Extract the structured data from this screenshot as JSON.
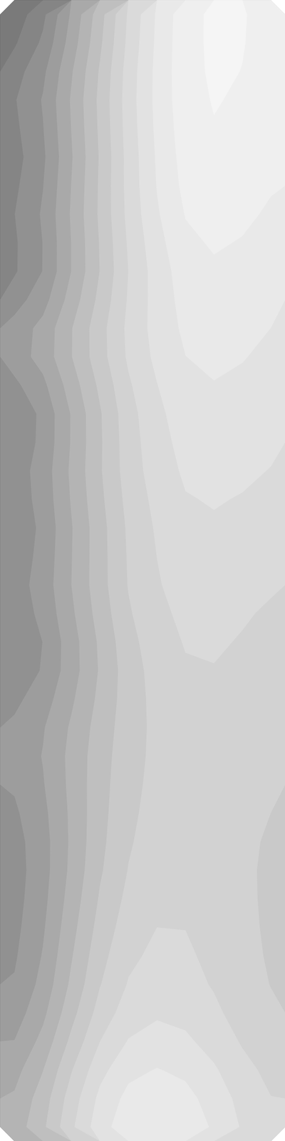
{
  "chart_data": {
    "type": "contour",
    "tick_labels": false,
    "xlim": [
      0,
      1
    ],
    "ylim": [
      0,
      4
    ],
    "zlim": [
      0,
      1
    ],
    "values": [
      [
        0.35,
        0.6,
        0.48,
        0.78,
        0.72,
        0.9,
        0.95,
        0.97,
        0.96,
        0.85
      ],
      [
        0.05,
        0.55,
        0.35,
        0.75,
        0.65,
        0.9,
        0.95,
        0.97,
        0.96,
        0.85
      ],
      [
        0.35,
        0.6,
        0.48,
        0.78,
        0.72,
        0.9,
        0.95,
        0.97,
        0.96,
        0.85
      ],
      [
        0.62,
        0.68,
        0.65,
        0.82,
        0.8,
        0.9,
        0.95,
        0.97,
        0.96,
        0.85
      ],
      [
        0.35,
        0.6,
        0.48,
        0.78,
        0.72,
        0.9,
        0.93,
        0.95,
        0.94,
        0.83
      ],
      [
        0.07,
        0.55,
        0.35,
        0.75,
        0.65,
        0.9,
        0.93,
        0.95,
        0.94,
        0.83
      ],
      [
        0.35,
        0.6,
        0.48,
        0.78,
        0.72,
        0.9,
        0.93,
        0.95,
        0.94,
        0.83
      ],
      [
        0.62,
        0.68,
        0.65,
        0.82,
        0.8,
        0.9,
        0.93,
        0.95,
        0.94,
        0.83
      ],
      [
        0.35,
        0.6,
        0.48,
        0.78,
        0.72,
        0.85,
        0.88,
        0.9,
        0.9,
        0.8
      ],
      [
        0.1,
        0.55,
        0.35,
        0.75,
        0.65,
        0.85,
        0.88,
        0.9,
        0.9,
        0.8
      ],
      [
        0.35,
        0.6,
        0.48,
        0.78,
        0.72,
        0.85,
        0.88,
        0.9,
        0.9,
        0.8
      ],
      [
        0.62,
        0.68,
        0.65,
        0.82,
        0.8,
        0.85,
        0.88,
        0.9,
        0.9,
        0.8
      ],
      [
        0.62,
        0.68,
        0.65,
        0.82,
        0.8,
        0.82,
        0.84,
        0.86,
        0.86,
        0.78
      ],
      [
        0.38,
        0.6,
        0.48,
        0.78,
        0.72,
        0.82,
        0.84,
        0.86,
        0.86,
        0.78
      ],
      [
        0.14,
        0.55,
        0.35,
        0.75,
        0.65,
        0.82,
        0.84,
        0.86,
        0.86,
        0.78
      ],
      [
        0.38,
        0.6,
        0.48,
        0.78,
        0.72,
        0.82,
        0.84,
        0.86,
        0.86,
        0.78
      ],
      [
        0.62,
        0.68,
        0.65,
        0.82,
        0.8,
        0.8,
        0.8,
        0.82,
        0.82,
        0.75
      ],
      [
        0.4,
        0.6,
        0.48,
        0.78,
        0.72,
        0.8,
        0.8,
        0.82,
        0.82,
        0.75
      ],
      [
        0.2,
        0.55,
        0.35,
        0.75,
        0.6,
        0.8,
        0.8,
        0.82,
        0.82,
        0.75
      ],
      [
        0.4,
        0.6,
        0.48,
        0.78,
        0.72,
        0.8,
        0.8,
        0.82,
        0.82,
        0.75
      ],
      [
        0.6,
        0.66,
        0.62,
        0.8,
        0.78,
        0.76,
        0.78,
        0.78,
        0.78,
        0.72
      ],
      [
        0.42,
        0.58,
        0.48,
        0.76,
        0.72,
        0.76,
        0.78,
        0.78,
        0.78,
        0.72
      ],
      [
        0.28,
        0.52,
        0.35,
        0.72,
        0.68,
        0.76,
        0.78,
        0.78,
        0.78,
        0.72
      ],
      [
        0.42,
        0.55,
        0.48,
        0.72,
        0.72,
        0.76,
        0.78,
        0.78,
        0.78,
        0.72
      ],
      [
        0.52,
        0.56,
        0.58,
        0.7,
        0.72,
        0.72,
        0.76,
        0.76,
        0.76,
        0.7
      ],
      [
        0.5,
        0.55,
        0.6,
        0.7,
        0.72,
        0.72,
        0.76,
        0.76,
        0.76,
        0.7
      ],
      [
        0.5,
        0.55,
        0.6,
        0.7,
        0.72,
        0.72,
        0.76,
        0.76,
        0.76,
        0.7
      ],
      [
        0.5,
        0.55,
        0.6,
        0.7,
        0.72,
        0.72,
        0.76,
        0.76,
        0.76,
        0.7
      ],
      [
        0.45,
        0.5,
        0.6,
        0.72,
        0.75,
        0.74,
        0.76,
        0.75,
        0.74,
        0.68
      ],
      [
        0.45,
        0.5,
        0.6,
        0.72,
        0.75,
        0.74,
        0.76,
        0.75,
        0.74,
        0.68
      ],
      [
        0.45,
        0.5,
        0.6,
        0.72,
        0.75,
        0.74,
        0.76,
        0.75,
        0.74,
        0.68
      ],
      [
        0.45,
        0.5,
        0.6,
        0.72,
        0.75,
        0.74,
        0.76,
        0.75,
        0.74,
        0.68
      ],
      [
        0.45,
        0.52,
        0.65,
        0.78,
        0.78,
        0.78,
        0.78,
        0.76,
        0.74,
        0.68
      ],
      [
        0.45,
        0.52,
        0.65,
        0.78,
        0.78,
        0.78,
        0.78,
        0.76,
        0.74,
        0.68
      ],
      [
        0.45,
        0.52,
        0.65,
        0.78,
        0.78,
        0.78,
        0.78,
        0.76,
        0.74,
        0.68
      ],
      [
        0.45,
        0.52,
        0.65,
        0.78,
        0.78,
        0.78,
        0.78,
        0.76,
        0.74,
        0.68
      ],
      [
        0.5,
        0.58,
        0.75,
        0.84,
        0.82,
        0.85,
        0.84,
        0.8,
        0.76,
        0.7
      ],
      [
        0.5,
        0.58,
        0.75,
        0.84,
        0.82,
        0.85,
        0.84,
        0.8,
        0.76,
        0.7
      ],
      [
        0.55,
        0.62,
        0.82,
        0.9,
        0.88,
        0.9,
        0.92,
        0.86,
        0.8,
        0.72
      ],
      [
        0.55,
        0.62,
        0.82,
        0.9,
        0.88,
        0.9,
        0.92,
        0.86,
        0.8,
        0.72
      ]
    ]
  }
}
